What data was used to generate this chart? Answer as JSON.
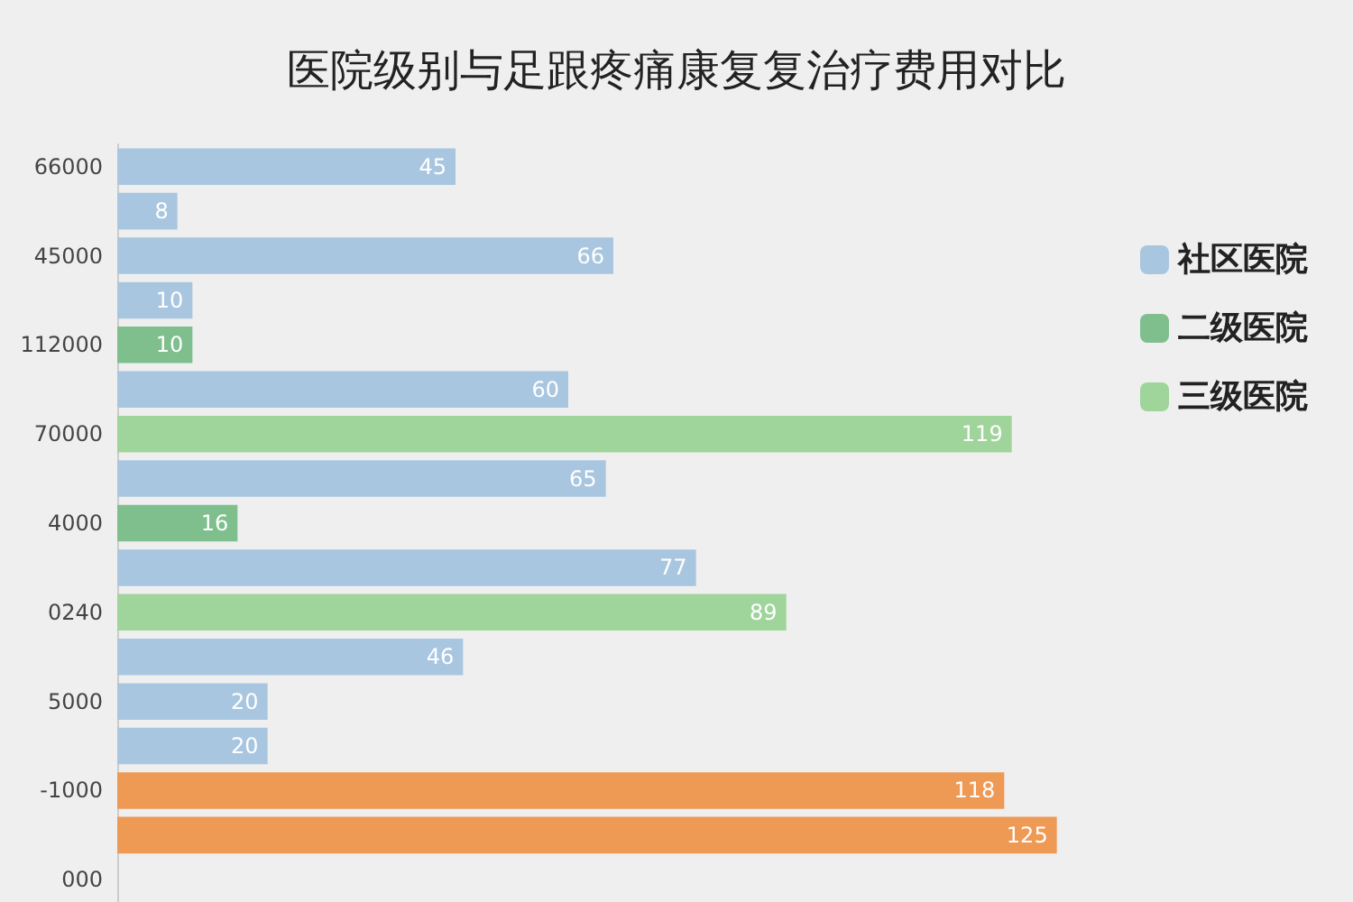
{
  "chart_data": {
    "type": "bar",
    "title": "医院级别与足跟疼痛康复复治疗费用对比",
    "orientation": "horizontal",
    "legend": "right",
    "data_labels": true,
    "tick_labels": "y",
    "categories": [
      "66000",
      null,
      "45000",
      null,
      "112000",
      null,
      "70000",
      null,
      "4000",
      null,
      "0240",
      null,
      "5000",
      null,
      "-1000",
      null,
      "000"
    ],
    "series": [
      {
        "name": "社区医院",
        "color": "#a9c6e0",
        "values": [
          45,
          8,
          66,
          10,
          null,
          60,
          null,
          65,
          null,
          77,
          null,
          46,
          20,
          20,
          null,
          null,
          null
        ]
      },
      {
        "name": "二级医院",
        "color": "#7fbf8e",
        "values": [
          null,
          null,
          null,
          null,
          10,
          null,
          null,
          null,
          16,
          null,
          null,
          null,
          null,
          null,
          null,
          null,
          null
        ]
      },
      {
        "name": "三级医院",
        "color": "#9fd49a",
        "values": [
          null,
          null,
          null,
          null,
          null,
          null,
          119,
          null,
          null,
          null,
          89,
          null,
          null,
          null,
          null,
          null,
          null
        ]
      },
      {
        "color": "#ee9a55",
        "values": [
          null,
          null,
          null,
          null,
          null,
          null,
          null,
          null,
          null,
          null,
          null,
          null,
          null,
          null,
          118,
          125,
          null
        ]
      }
    ]
  }
}
